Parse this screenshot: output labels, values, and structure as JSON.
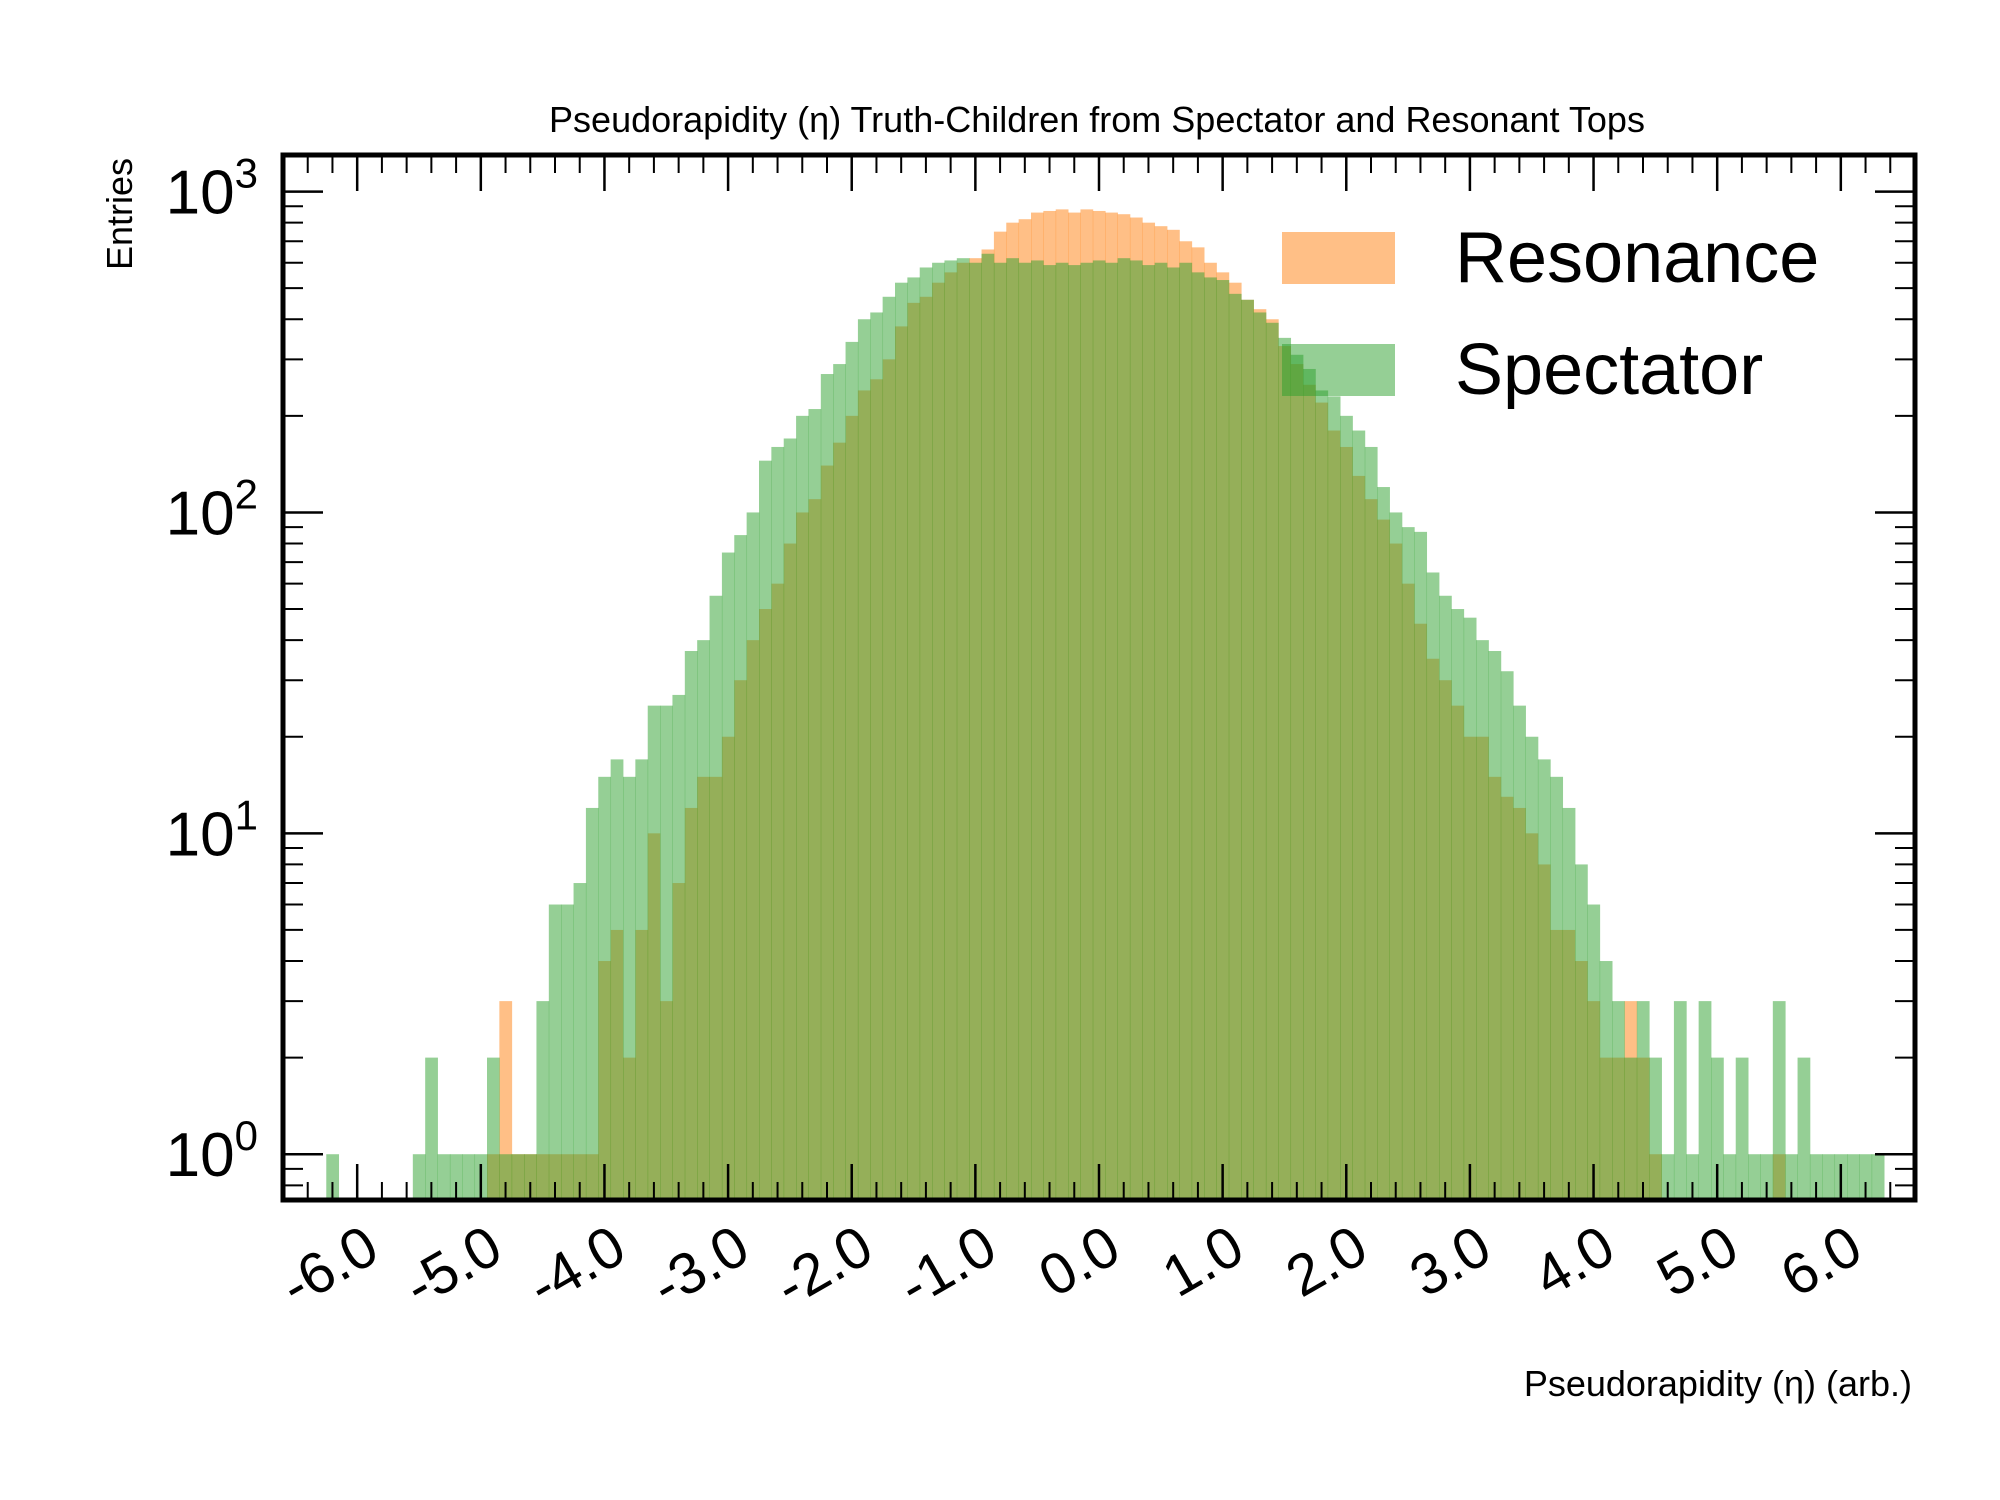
{
  "chart_data": {
    "type": "histogram",
    "title": "Pseudorapidity (η) Truth-Children from Spectator and Resonant Tops",
    "xlabel": "Pseudorapidity (η) (arb.)",
    "ylabel": "Entries",
    "y_scale": "log",
    "ylim": [
      0.72,
      1300
    ],
    "xlim": [
      -6.6,
      6.6
    ],
    "x_tick_labels": [
      "-6.0",
      "-5.0",
      "-4.0",
      "-3.0",
      "-2.0",
      "-1.0",
      "0.0",
      "1.0",
      "2.0",
      "3.0",
      "4.0",
      "5.0",
      "6.0"
    ],
    "x_ticks": [
      -6,
      -5,
      -4,
      -3,
      -2,
      -1,
      0,
      1,
      2,
      3,
      4,
      5,
      6
    ],
    "y_ticks": [
      {
        "value": 1,
        "base": "10",
        "exp": "0"
      },
      {
        "value": 10,
        "base": "10",
        "exp": "1"
      },
      {
        "value": 100,
        "base": "10",
        "exp": "2"
      },
      {
        "value": 1000,
        "base": "10",
        "exp": "3"
      }
    ],
    "legend_position": "top-right",
    "series": [
      {
        "name": "Resonance",
        "color": "#ff7f0e",
        "opacity": 0.5,
        "bins": [
          [
            -4.95,
            -4.85,
            1
          ],
          [
            -4.85,
            -4.75,
            3
          ],
          [
            -4.75,
            -4.65,
            1
          ],
          [
            -4.65,
            -4.55,
            1
          ],
          [
            -4.55,
            -4.45,
            1
          ],
          [
            -4.45,
            -4.35,
            1
          ],
          [
            -4.35,
            -4.25,
            1
          ],
          [
            -4.25,
            -4.15,
            1
          ],
          [
            -4.15,
            -4.05,
            1
          ],
          [
            -4.05,
            -3.95,
            4
          ],
          [
            -3.95,
            -3.85,
            5
          ],
          [
            -3.85,
            -3.75,
            2
          ],
          [
            -3.75,
            -3.65,
            5
          ],
          [
            -3.65,
            -3.55,
            10
          ],
          [
            -3.55,
            -3.45,
            3
          ],
          [
            -3.45,
            -3.35,
            7
          ],
          [
            -3.35,
            -3.25,
            12
          ],
          [
            -3.25,
            -3.15,
            15
          ],
          [
            -3.15,
            -3.05,
            15
          ],
          [
            -3.05,
            -2.95,
            20
          ],
          [
            -2.95,
            -2.85,
            30
          ],
          [
            -2.85,
            -2.75,
            40
          ],
          [
            -2.75,
            -2.65,
            50
          ],
          [
            -2.65,
            -2.55,
            60
          ],
          [
            -2.55,
            -2.45,
            80
          ],
          [
            -2.45,
            -2.35,
            100
          ],
          [
            -2.35,
            -2.25,
            110
          ],
          [
            -2.25,
            -2.15,
            140
          ],
          [
            -2.15,
            -2.05,
            165
          ],
          [
            -2.05,
            -1.95,
            200
          ],
          [
            -1.95,
            -1.85,
            240
          ],
          [
            -1.85,
            -1.75,
            260
          ],
          [
            -1.75,
            -1.65,
            300
          ],
          [
            -1.65,
            -1.55,
            380
          ],
          [
            -1.55,
            -1.45,
            450
          ],
          [
            -1.45,
            -1.35,
            470
          ],
          [
            -1.35,
            -1.25,
            520
          ],
          [
            -1.25,
            -1.15,
            560
          ],
          [
            -1.15,
            -1.05,
            600
          ],
          [
            -1.05,
            -0.95,
            620
          ],
          [
            -0.95,
            -0.85,
            660
          ],
          [
            -0.85,
            -0.75,
            750
          ],
          [
            -0.75,
            -0.65,
            800
          ],
          [
            -0.65,
            -0.55,
            820
          ],
          [
            -0.55,
            -0.45,
            860
          ],
          [
            -0.45,
            -0.35,
            870
          ],
          [
            -0.35,
            -0.25,
            880
          ],
          [
            -0.25,
            -0.15,
            860
          ],
          [
            -0.15,
            -0.05,
            880
          ],
          [
            -0.05,
            0.05,
            870
          ],
          [
            0.05,
            0.15,
            860
          ],
          [
            0.15,
            0.25,
            850
          ],
          [
            0.25,
            0.35,
            830
          ],
          [
            0.35,
            0.45,
            800
          ],
          [
            0.45,
            0.55,
            780
          ],
          [
            0.55,
            0.65,
            760
          ],
          [
            0.65,
            0.75,
            700
          ],
          [
            0.75,
            0.85,
            670
          ],
          [
            0.85,
            0.95,
            600
          ],
          [
            0.95,
            1.05,
            560
          ],
          [
            1.05,
            1.15,
            520
          ],
          [
            1.15,
            1.25,
            460
          ],
          [
            1.25,
            1.35,
            430
          ],
          [
            1.35,
            1.45,
            400
          ],
          [
            1.45,
            1.55,
            330
          ],
          [
            1.55,
            1.65,
            290
          ],
          [
            1.65,
            1.75,
            250
          ],
          [
            1.75,
            1.85,
            220
          ],
          [
            1.85,
            1.95,
            180
          ],
          [
            1.95,
            2.05,
            160
          ],
          [
            2.05,
            2.15,
            130
          ],
          [
            2.15,
            2.25,
            110
          ],
          [
            2.25,
            2.35,
            95
          ],
          [
            2.35,
            2.45,
            80
          ],
          [
            2.45,
            2.55,
            60
          ],
          [
            2.55,
            2.65,
            45
          ],
          [
            2.65,
            2.75,
            35
          ],
          [
            2.75,
            2.85,
            30
          ],
          [
            2.85,
            2.95,
            25
          ],
          [
            2.95,
            3.05,
            20
          ],
          [
            3.05,
            3.15,
            20
          ],
          [
            3.15,
            3.25,
            15
          ],
          [
            3.25,
            3.35,
            13
          ],
          [
            3.35,
            3.45,
            12
          ],
          [
            3.45,
            3.55,
            10
          ],
          [
            3.55,
            3.65,
            8
          ],
          [
            3.65,
            3.75,
            5
          ],
          [
            3.75,
            3.85,
            5
          ],
          [
            3.85,
            3.95,
            4
          ],
          [
            3.95,
            4.05,
            3
          ],
          [
            4.05,
            4.15,
            2
          ],
          [
            4.15,
            4.25,
            2
          ],
          [
            4.25,
            4.35,
            3
          ],
          [
            4.35,
            4.45,
            2
          ],
          [
            4.45,
            4.55,
            1
          ],
          [
            5.45,
            5.55,
            1
          ]
        ]
      },
      {
        "name": "Spectator",
        "color": "#2ca02c",
        "opacity": 0.5,
        "bins": [
          [
            -6.25,
            -6.15,
            1
          ],
          [
            -5.55,
            -5.45,
            1
          ],
          [
            -5.45,
            -5.35,
            2
          ],
          [
            -5.35,
            -5.25,
            1
          ],
          [
            -5.25,
            -5.15,
            1
          ],
          [
            -5.15,
            -5.05,
            1
          ],
          [
            -5.05,
            -4.95,
            1
          ],
          [
            -4.95,
            -4.85,
            2
          ],
          [
            -4.85,
            -4.75,
            1
          ],
          [
            -4.75,
            -4.65,
            1
          ],
          [
            -4.65,
            -4.55,
            1
          ],
          [
            -4.55,
            -4.45,
            3
          ],
          [
            -4.45,
            -4.35,
            6
          ],
          [
            -4.35,
            -4.25,
            6
          ],
          [
            -4.25,
            -4.15,
            7
          ],
          [
            -4.15,
            -4.05,
            12
          ],
          [
            -4.05,
            -3.95,
            15
          ],
          [
            -3.95,
            -3.85,
            17
          ],
          [
            -3.85,
            -3.75,
            15
          ],
          [
            -3.75,
            -3.65,
            17
          ],
          [
            -3.65,
            -3.55,
            25
          ],
          [
            -3.55,
            -3.45,
            25
          ],
          [
            -3.45,
            -3.35,
            27
          ],
          [
            -3.35,
            -3.25,
            37
          ],
          [
            -3.25,
            -3.15,
            40
          ],
          [
            -3.15,
            -3.05,
            55
          ],
          [
            -3.05,
            -2.95,
            75
          ],
          [
            -2.95,
            -2.85,
            85
          ],
          [
            -2.85,
            -2.75,
            100
          ],
          [
            -2.75,
            -2.65,
            145
          ],
          [
            -2.65,
            -2.55,
            160
          ],
          [
            -2.55,
            -2.45,
            170
          ],
          [
            -2.45,
            -2.35,
            200
          ],
          [
            -2.35,
            -2.25,
            210
          ],
          [
            -2.25,
            -2.15,
            270
          ],
          [
            -2.15,
            -2.05,
            290
          ],
          [
            -2.05,
            -1.95,
            340
          ],
          [
            -1.95,
            -1.85,
            400
          ],
          [
            -1.85,
            -1.75,
            420
          ],
          [
            -1.75,
            -1.65,
            470
          ],
          [
            -1.65,
            -1.55,
            520
          ],
          [
            -1.55,
            -1.45,
            540
          ],
          [
            -1.45,
            -1.35,
            580
          ],
          [
            -1.35,
            -1.25,
            600
          ],
          [
            -1.25,
            -1.15,
            610
          ],
          [
            -1.15,
            -1.05,
            620
          ],
          [
            -1.05,
            -0.95,
            600
          ],
          [
            -0.95,
            -0.85,
            640
          ],
          [
            -0.85,
            -0.75,
            600
          ],
          [
            -0.75,
            -0.65,
            620
          ],
          [
            -0.65,
            -0.55,
            600
          ],
          [
            -0.55,
            -0.45,
            610
          ],
          [
            -0.45,
            -0.35,
            590
          ],
          [
            -0.35,
            -0.25,
            600
          ],
          [
            -0.25,
            -0.15,
            590
          ],
          [
            -0.15,
            -0.05,
            600
          ],
          [
            -0.05,
            0.05,
            610
          ],
          [
            0.05,
            0.15,
            600
          ],
          [
            0.15,
            0.25,
            620
          ],
          [
            0.25,
            0.35,
            610
          ],
          [
            0.35,
            0.45,
            590
          ],
          [
            0.45,
            0.55,
            600
          ],
          [
            0.55,
            0.65,
            580
          ],
          [
            0.65,
            0.75,
            600
          ],
          [
            0.75,
            0.85,
            560
          ],
          [
            0.85,
            0.95,
            540
          ],
          [
            0.95,
            1.05,
            530
          ],
          [
            1.05,
            1.15,
            480
          ],
          [
            1.15,
            1.25,
            460
          ],
          [
            1.25,
            1.35,
            420
          ],
          [
            1.35,
            1.45,
            390
          ],
          [
            1.45,
            1.55,
            350
          ],
          [
            1.55,
            1.65,
            310
          ],
          [
            1.65,
            1.75,
            280
          ],
          [
            1.75,
            1.85,
            240
          ],
          [
            1.85,
            1.95,
            230
          ],
          [
            1.95,
            2.05,
            200
          ],
          [
            2.05,
            2.15,
            180
          ],
          [
            2.15,
            2.25,
            160
          ],
          [
            2.25,
            2.35,
            120
          ],
          [
            2.35,
            2.45,
            100
          ],
          [
            2.45,
            2.55,
            90
          ],
          [
            2.55,
            2.65,
            87
          ],
          [
            2.65,
            2.75,
            65
          ],
          [
            2.75,
            2.85,
            55
          ],
          [
            2.85,
            2.95,
            50
          ],
          [
            2.95,
            3.05,
            47
          ],
          [
            3.05,
            3.15,
            40
          ],
          [
            3.15,
            3.25,
            37
          ],
          [
            3.25,
            3.35,
            32
          ],
          [
            3.35,
            3.45,
            25
          ],
          [
            3.45,
            3.55,
            20
          ],
          [
            3.55,
            3.65,
            17
          ],
          [
            3.65,
            3.75,
            15
          ],
          [
            3.75,
            3.85,
            12
          ],
          [
            3.85,
            3.95,
            8
          ],
          [
            3.95,
            4.05,
            6
          ],
          [
            4.05,
            4.15,
            4
          ],
          [
            4.15,
            4.25,
            3
          ],
          [
            4.25,
            4.35,
            2
          ],
          [
            4.35,
            4.45,
            3
          ],
          [
            4.45,
            4.55,
            2
          ],
          [
            4.55,
            4.65,
            1
          ],
          [
            4.65,
            4.75,
            3
          ],
          [
            4.75,
            4.85,
            1
          ],
          [
            4.85,
            4.95,
            3
          ],
          [
            4.95,
            5.05,
            2
          ],
          [
            5.05,
            5.15,
            1
          ],
          [
            5.15,
            5.25,
            2
          ],
          [
            5.25,
            5.35,
            1
          ],
          [
            5.35,
            5.45,
            1
          ],
          [
            5.45,
            5.55,
            3
          ],
          [
            5.55,
            5.65,
            1
          ],
          [
            5.65,
            5.75,
            2
          ],
          [
            5.75,
            5.85,
            1
          ],
          [
            5.85,
            5.95,
            1
          ],
          [
            5.95,
            6.05,
            1
          ],
          [
            6.05,
            6.15,
            1
          ],
          [
            6.15,
            6.25,
            1
          ],
          [
            6.25,
            6.35,
            1
          ]
        ]
      }
    ]
  }
}
